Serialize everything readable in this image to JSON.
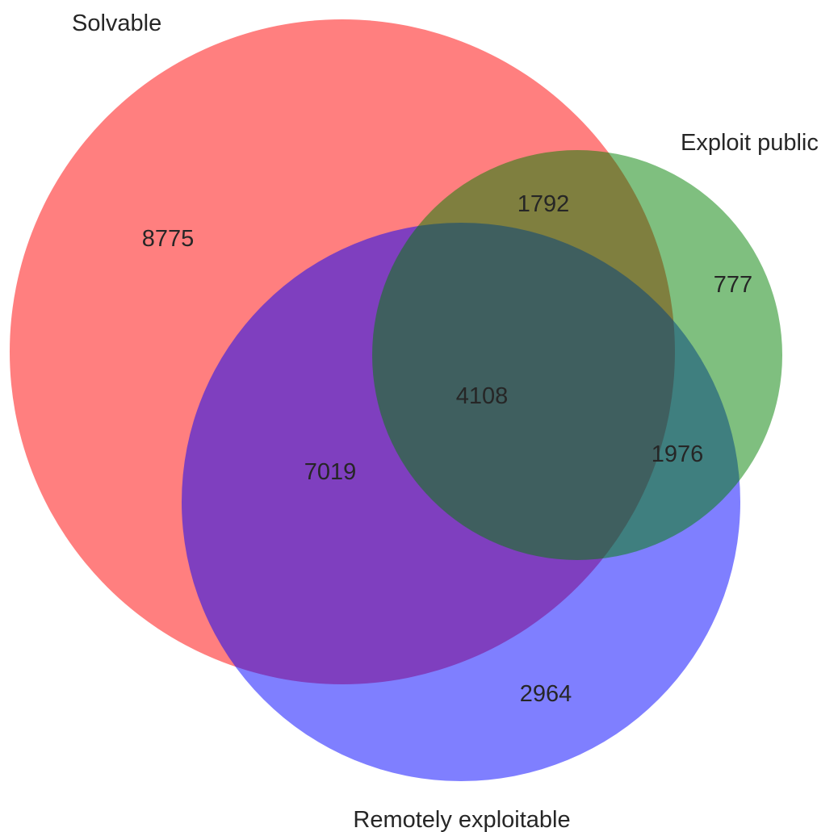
{
  "diagram": {
    "type": "venn3",
    "sets": [
      {
        "id": "A",
        "name": "Solvable",
        "color": "#ff0000"
      },
      {
        "id": "B",
        "name": "Exploit public",
        "color": "#008000"
      },
      {
        "id": "C",
        "name": "Remotely exploitable",
        "color": "#0000ff"
      }
    ],
    "regions": {
      "A_only": "8775",
      "B_only": "777",
      "C_only": "2964",
      "AB_only": "1792",
      "AC_only": "7019",
      "BC_only": "1976",
      "ABC": "4108"
    },
    "fill_opacity": 0.5
  }
}
